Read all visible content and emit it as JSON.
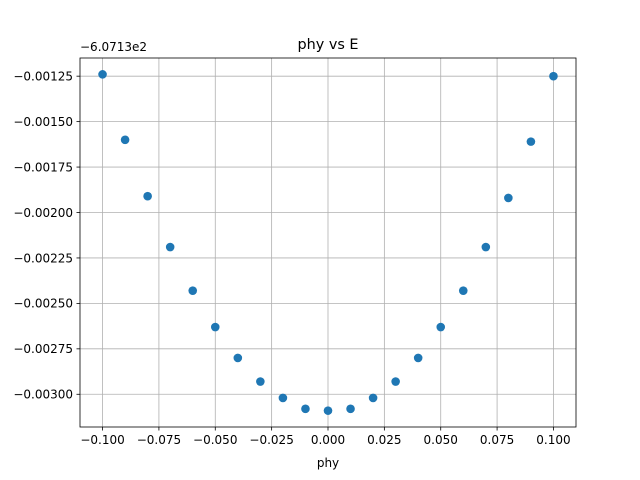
{
  "chart_data": {
    "type": "scatter",
    "title": "phy vs E",
    "xlabel": "phy",
    "ylabel": "",
    "y_offset_label": "−6.0713e2",
    "xlim": [
      -0.11,
      0.11
    ],
    "ylim": [
      -0.00318,
      -0.00115
    ],
    "grid": true,
    "marker_color": "#1f77b4",
    "x_ticks": [
      -0.1,
      -0.075,
      -0.05,
      -0.025,
      0.0,
      0.025,
      0.05,
      0.075,
      0.1
    ],
    "x_tick_labels": [
      "−0.100",
      "−0.075",
      "−0.050",
      "−0.025",
      "0.000",
      "0.025",
      "0.050",
      "0.075",
      "0.100"
    ],
    "y_ticks": [
      -0.00125,
      -0.0015,
      -0.00175,
      -0.002,
      -0.00225,
      -0.0025,
      -0.00275,
      -0.003
    ],
    "y_tick_labels": [
      "−0.00125",
      "−0.00150",
      "−0.00175",
      "−0.00200",
      "−0.00225",
      "−0.00250",
      "−0.00275",
      "−0.00300"
    ],
    "x": [
      -0.1,
      -0.09,
      -0.08,
      -0.07,
      -0.06,
      -0.05,
      -0.04,
      -0.03,
      -0.02,
      -0.01,
      0.0,
      0.01,
      0.02,
      0.03,
      0.04,
      0.05,
      0.06,
      0.07,
      0.08,
      0.09,
      0.1
    ],
    "y": [
      -0.00124,
      -0.0016,
      -0.00191,
      -0.00219,
      -0.00243,
      -0.00263,
      -0.0028,
      -0.00293,
      -0.00302,
      -0.00308,
      -0.00309,
      -0.00308,
      -0.00302,
      -0.00293,
      -0.0028,
      -0.00263,
      -0.00243,
      -0.00219,
      -0.00192,
      -0.00161,
      -0.00125
    ]
  }
}
